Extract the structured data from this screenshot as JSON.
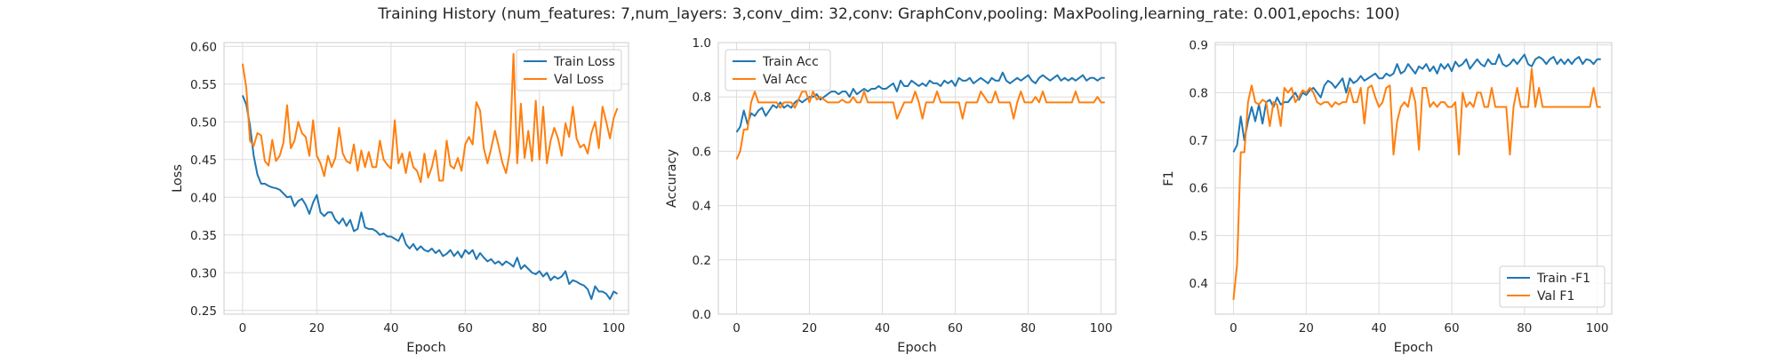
{
  "figure": {
    "title": "Training History (num_features: 7,num_layers: 3,conv_dim: 32,conv: GraphConv,pooling: MaxPooling,learning_rate: 0.001,epochs: 100)"
  },
  "colors": {
    "train": "#1f77b4",
    "val": "#ff7f0e",
    "grid": "#dcdcdc",
    "spine": "#cccccc"
  },
  "chart_data": [
    {
      "type": "line",
      "xlabel": "Epoch",
      "ylabel": "Loss",
      "xlim": [
        -5,
        104
      ],
      "ylim": [
        0.245,
        0.605
      ],
      "xticks": [
        0,
        20,
        40,
        60,
        80,
        100
      ],
      "yticks": [
        0.25,
        0.3,
        0.35,
        0.4,
        0.45,
        0.5,
        0.55,
        0.6
      ],
      "tick_decimals": 2,
      "legend": "top-right",
      "grid": true,
      "series": [
        {
          "name": "Train Loss",
          "color": "#1f77b4",
          "values": [
            0.535,
            0.523,
            0.495,
            0.455,
            0.43,
            0.418,
            0.418,
            0.415,
            0.413,
            0.412,
            0.41,
            0.405,
            0.4,
            0.401,
            0.388,
            0.395,
            0.398,
            0.39,
            0.378,
            0.393,
            0.403,
            0.38,
            0.375,
            0.38,
            0.38,
            0.37,
            0.365,
            0.372,
            0.362,
            0.37,
            0.355,
            0.358,
            0.38,
            0.36,
            0.358,
            0.358,
            0.355,
            0.35,
            0.352,
            0.348,
            0.348,
            0.345,
            0.342,
            0.352,
            0.338,
            0.332,
            0.338,
            0.33,
            0.335,
            0.33,
            0.328,
            0.332,
            0.326,
            0.33,
            0.322,
            0.325,
            0.33,
            0.322,
            0.328,
            0.32,
            0.33,
            0.325,
            0.33,
            0.318,
            0.326,
            0.32,
            0.315,
            0.318,
            0.312,
            0.315,
            0.31,
            0.315,
            0.312,
            0.308,
            0.32,
            0.305,
            0.31,
            0.305,
            0.3,
            0.298,
            0.302,
            0.295,
            0.3,
            0.29,
            0.295,
            0.292,
            0.295,
            0.302,
            0.285,
            0.29,
            0.288,
            0.285,
            0.283,
            0.278,
            0.265,
            0.282,
            0.275,
            0.275,
            0.272,
            0.265,
            0.275,
            0.272
          ]
        },
        {
          "name": "Val Loss",
          "color": "#ff7f0e",
          "values": [
            0.577,
            0.545,
            0.475,
            0.468,
            0.485,
            0.482,
            0.448,
            0.442,
            0.476,
            0.448,
            0.455,
            0.472,
            0.522,
            0.465,
            0.475,
            0.5,
            0.485,
            0.48,
            0.455,
            0.502,
            0.455,
            0.445,
            0.428,
            0.455,
            0.44,
            0.452,
            0.492,
            0.458,
            0.448,
            0.445,
            0.47,
            0.435,
            0.462,
            0.44,
            0.46,
            0.44,
            0.44,
            0.475,
            0.45,
            0.443,
            0.438,
            0.502,
            0.445,
            0.458,
            0.432,
            0.46,
            0.44,
            0.435,
            0.42,
            0.458,
            0.426,
            0.44,
            0.462,
            0.422,
            0.422,
            0.475,
            0.442,
            0.438,
            0.452,
            0.435,
            0.47,
            0.48,
            0.47,
            0.526,
            0.515,
            0.465,
            0.445,
            0.465,
            0.488,
            0.468,
            0.446,
            0.432,
            0.46,
            0.59,
            0.445,
            0.524,
            0.452,
            0.488,
            0.448,
            0.528,
            0.45,
            0.52,
            0.445,
            0.475,
            0.492,
            0.478,
            0.455,
            0.498,
            0.48,
            0.52,
            0.478,
            0.466,
            0.47,
            0.458,
            0.485,
            0.5,
            0.465,
            0.52,
            0.5,
            0.478,
            0.505,
            0.518
          ]
        }
      ]
    },
    {
      "type": "line",
      "xlabel": "Epoch",
      "ylabel": "Accuracy",
      "xlim": [
        -5,
        104
      ],
      "ylim": [
        0.0,
        1.0
      ],
      "xticks": [
        0,
        20,
        40,
        60,
        80,
        100
      ],
      "yticks": [
        0.0,
        0.2,
        0.4,
        0.6,
        0.8,
        1.0
      ],
      "tick_decimals": 1,
      "legend": "top-left",
      "grid": true,
      "series": [
        {
          "name": "Train Acc",
          "color": "#1f77b4",
          "values": [
            0.67,
            0.69,
            0.75,
            0.7,
            0.74,
            0.73,
            0.75,
            0.76,
            0.73,
            0.75,
            0.77,
            0.76,
            0.78,
            0.76,
            0.77,
            0.76,
            0.78,
            0.79,
            0.78,
            0.79,
            0.8,
            0.8,
            0.81,
            0.79,
            0.8,
            0.81,
            0.82,
            0.82,
            0.81,
            0.82,
            0.82,
            0.8,
            0.83,
            0.81,
            0.82,
            0.83,
            0.82,
            0.83,
            0.83,
            0.84,
            0.83,
            0.83,
            0.84,
            0.85,
            0.82,
            0.86,
            0.84,
            0.84,
            0.86,
            0.85,
            0.84,
            0.85,
            0.84,
            0.86,
            0.85,
            0.85,
            0.84,
            0.86,
            0.85,
            0.86,
            0.84,
            0.87,
            0.86,
            0.86,
            0.87,
            0.85,
            0.86,
            0.87,
            0.86,
            0.85,
            0.87,
            0.86,
            0.86,
            0.89,
            0.86,
            0.85,
            0.86,
            0.87,
            0.86,
            0.87,
            0.88,
            0.86,
            0.85,
            0.87,
            0.88,
            0.87,
            0.86,
            0.87,
            0.88,
            0.86,
            0.87,
            0.86,
            0.87,
            0.86,
            0.87,
            0.88,
            0.86,
            0.87,
            0.87,
            0.86,
            0.87,
            0.87
          ]
        },
        {
          "name": "Val Acc",
          "color": "#ff7f0e",
          "values": [
            0.57,
            0.6,
            0.68,
            0.68,
            0.78,
            0.82,
            0.78,
            0.78,
            0.78,
            0.78,
            0.78,
            0.78,
            0.76,
            0.78,
            0.78,
            0.78,
            0.76,
            0.79,
            0.82,
            0.82,
            0.78,
            0.82,
            0.79,
            0.8,
            0.79,
            0.78,
            0.78,
            0.78,
            0.78,
            0.79,
            0.78,
            0.78,
            0.8,
            0.78,
            0.78,
            0.82,
            0.78,
            0.78,
            0.78,
            0.78,
            0.78,
            0.78,
            0.78,
            0.78,
            0.72,
            0.75,
            0.78,
            0.78,
            0.78,
            0.82,
            0.78,
            0.72,
            0.78,
            0.78,
            0.78,
            0.82,
            0.78,
            0.78,
            0.78,
            0.78,
            0.78,
            0.78,
            0.72,
            0.78,
            0.78,
            0.78,
            0.78,
            0.82,
            0.8,
            0.78,
            0.78,
            0.82,
            0.78,
            0.78,
            0.78,
            0.78,
            0.72,
            0.78,
            0.82,
            0.78,
            0.78,
            0.78,
            0.8,
            0.78,
            0.82,
            0.78,
            0.78,
            0.78,
            0.78,
            0.78,
            0.78,
            0.78,
            0.78,
            0.82,
            0.78,
            0.78,
            0.78,
            0.78,
            0.78,
            0.8,
            0.78,
            0.78
          ]
        }
      ]
    },
    {
      "type": "line",
      "xlabel": "Epoch",
      "ylabel": "F1",
      "xlim": [
        -5,
        104
      ],
      "ylim": [
        0.335,
        0.905
      ],
      "xticks": [
        0,
        20,
        40,
        60,
        80,
        100
      ],
      "yticks": [
        0.4,
        0.5,
        0.6,
        0.7,
        0.8,
        0.9
      ],
      "tick_decimals": 1,
      "legend": "bottom-right",
      "grid": true,
      "series": [
        {
          "name": "Train -F1",
          "color": "#1f77b4",
          "values": [
            0.675,
            0.69,
            0.75,
            0.7,
            0.74,
            0.77,
            0.74,
            0.775,
            0.735,
            0.78,
            0.785,
            0.77,
            0.79,
            0.775,
            0.78,
            0.78,
            0.79,
            0.8,
            0.785,
            0.8,
            0.795,
            0.805,
            0.81,
            0.8,
            0.79,
            0.815,
            0.825,
            0.82,
            0.81,
            0.82,
            0.83,
            0.8,
            0.83,
            0.82,
            0.825,
            0.835,
            0.825,
            0.83,
            0.835,
            0.84,
            0.83,
            0.83,
            0.84,
            0.835,
            0.84,
            0.86,
            0.84,
            0.845,
            0.86,
            0.85,
            0.84,
            0.855,
            0.85,
            0.86,
            0.845,
            0.855,
            0.84,
            0.86,
            0.85,
            0.86,
            0.845,
            0.865,
            0.855,
            0.86,
            0.87,
            0.85,
            0.86,
            0.87,
            0.86,
            0.855,
            0.87,
            0.86,
            0.86,
            0.88,
            0.86,
            0.855,
            0.86,
            0.87,
            0.86,
            0.87,
            0.88,
            0.86,
            0.855,
            0.87,
            0.875,
            0.87,
            0.86,
            0.87,
            0.875,
            0.86,
            0.87,
            0.86,
            0.87,
            0.86,
            0.87,
            0.875,
            0.86,
            0.87,
            0.868,
            0.86,
            0.87,
            0.87
          ]
        },
        {
          "name": "Val F1",
          "color": "#ff7f0e",
          "values": [
            0.365,
            0.44,
            0.675,
            0.675,
            0.78,
            0.815,
            0.78,
            0.775,
            0.785,
            0.78,
            0.73,
            0.78,
            0.775,
            0.73,
            0.81,
            0.8,
            0.81,
            0.78,
            0.79,
            0.805,
            0.8,
            0.81,
            0.8,
            0.78,
            0.775,
            0.78,
            0.78,
            0.77,
            0.78,
            0.775,
            0.78,
            0.78,
            0.81,
            0.78,
            0.78,
            0.81,
            0.735,
            0.81,
            0.815,
            0.79,
            0.77,
            0.78,
            0.81,
            0.815,
            0.67,
            0.74,
            0.77,
            0.78,
            0.77,
            0.81,
            0.78,
            0.68,
            0.81,
            0.81,
            0.77,
            0.78,
            0.77,
            0.78,
            0.78,
            0.77,
            0.77,
            0.78,
            0.67,
            0.8,
            0.77,
            0.78,
            0.77,
            0.8,
            0.8,
            0.77,
            0.77,
            0.81,
            0.77,
            0.77,
            0.77,
            0.77,
            0.67,
            0.77,
            0.81,
            0.77,
            0.77,
            0.77,
            0.85,
            0.77,
            0.81,
            0.77,
            0.77,
            0.77,
            0.77,
            0.77,
            0.77,
            0.77,
            0.77,
            0.77,
            0.77,
            0.77,
            0.77,
            0.77,
            0.77,
            0.81,
            0.77,
            0.77
          ]
        }
      ]
    }
  ]
}
